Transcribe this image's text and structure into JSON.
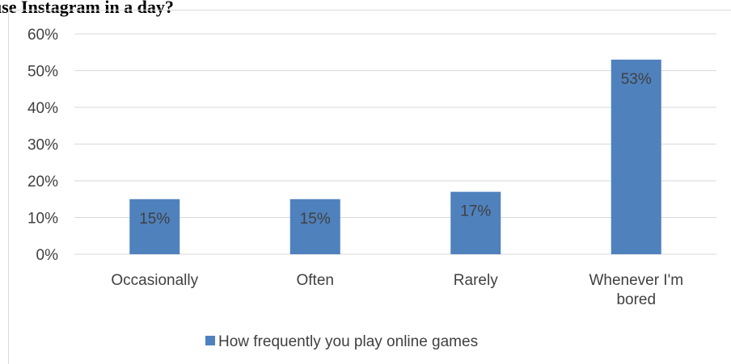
{
  "page": {
    "title": "use Instagram in a day?"
  },
  "colors": {
    "bar": "#4f81bd",
    "grid": "#d9d9d9",
    "text": "#404040"
  },
  "chart_data": {
    "type": "bar",
    "title": "",
    "xlabel": "",
    "ylabel": "",
    "categories": [
      [
        "Occasionally"
      ],
      [
        "Often"
      ],
      [
        "Rarely"
      ],
      [
        "Whenever I'm",
        "bored"
      ]
    ],
    "series": [
      {
        "name": "How frequently you play online games",
        "values": [
          15,
          15,
          17,
          53
        ],
        "data_labels": [
          "15%",
          "15%",
          "17%",
          "53%"
        ]
      }
    ],
    "ylim": [
      0,
      60
    ],
    "yticks": [
      {
        "value": 0,
        "label": "0%"
      },
      {
        "value": 10,
        "label": "10%"
      },
      {
        "value": 20,
        "label": "20%"
      },
      {
        "value": 30,
        "label": "30%"
      },
      {
        "value": 40,
        "label": "40%"
      },
      {
        "value": 50,
        "label": "50%"
      },
      {
        "value": 60,
        "label": "60%"
      }
    ],
    "grid": true,
    "legend": "bottom"
  }
}
